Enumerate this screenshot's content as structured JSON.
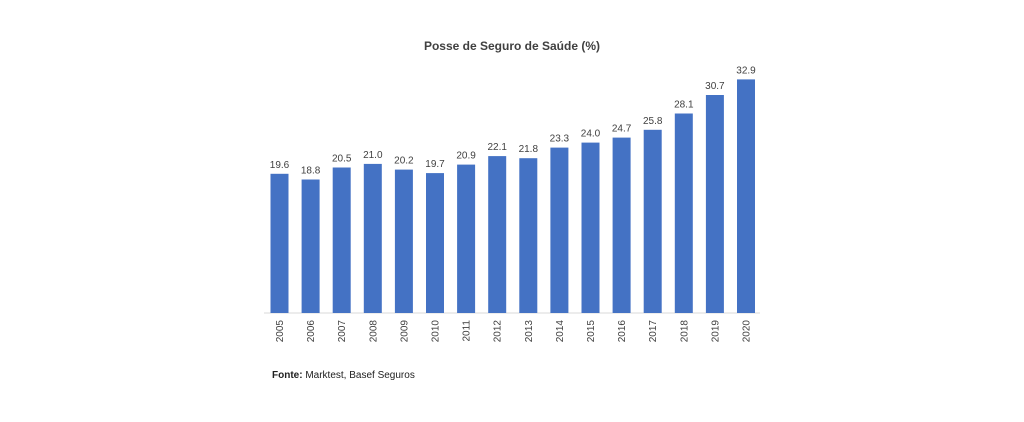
{
  "chart_data": {
    "type": "bar",
    "title": "Posse de Seguro de Saúde (%)",
    "categories": [
      "2005",
      "2006",
      "2007",
      "2008",
      "2009",
      "2010",
      "2011",
      "2012",
      "2013",
      "2014",
      "2015",
      "2016",
      "2017",
      "2018",
      "2019",
      "2020"
    ],
    "values": [
      19.6,
      18.8,
      20.5,
      21.0,
      20.2,
      19.7,
      20.9,
      22.1,
      21.8,
      23.3,
      24.0,
      24.7,
      25.8,
      28.1,
      30.7,
      32.9
    ],
    "value_labels": [
      "19.6",
      "18.8",
      "20.5",
      "21.0",
      "20.2",
      "19.7",
      "20.9",
      "22.1",
      "21.8",
      "23.3",
      "24.0",
      "24.7",
      "25.8",
      "28.1",
      "30.7",
      "32.9"
    ],
    "xlabel": "",
    "ylabel": "",
    "ylim": [
      0,
      34
    ],
    "grid": false,
    "legend": "none",
    "bar_color": "#4472C4",
    "tick_label_rotation": "vertical"
  },
  "source": {
    "label": "Fonte:",
    "text": "Marktest, Basef Seguros"
  }
}
